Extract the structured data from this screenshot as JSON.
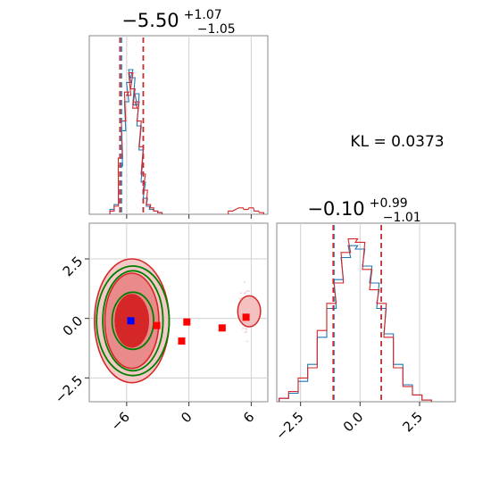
{
  "chart_data": [
    {
      "type": "histogram",
      "panel": "param-1-marginal",
      "title": {
        "median": "−5.50",
        "plus": "+1.07",
        "minus": "−1.05"
      },
      "median": -5.5,
      "quantiles_blue": [
        -6.5,
        -4.4
      ],
      "quantiles_red": [
        -6.65,
        -4.4
      ],
      "xlim": [
        -9.6,
        7.6
      ],
      "grid": true,
      "series": [
        {
          "color": "#1f77b4",
          "x": [
            -7.4,
            -7.0,
            -6.6,
            -6.3,
            -6.0,
            -5.8,
            -5.6,
            -5.4,
            -5.2,
            -5.0,
            -4.8,
            -4.6,
            -4.4,
            -4.2,
            -3.9,
            -3.6,
            -3.2,
            -2.8
          ],
          "y": [
            0.03,
            0.06,
            0.3,
            0.52,
            0.7,
            0.82,
            0.9,
            0.85,
            0.68,
            0.75,
            0.55,
            0.4,
            0.2,
            0.1,
            0.05,
            0.03,
            0.02,
            0.01
          ]
        },
        {
          "color": "#d62728",
          "x": [
            -7.4,
            -7.0,
            -6.6,
            -6.3,
            -6.0,
            -5.8,
            -5.6,
            -5.4,
            -5.2,
            -5.0,
            -4.8,
            -4.6,
            -4.4,
            -4.2,
            -3.9,
            -3.6,
            -3.2,
            -2.8,
            4.0,
            5.0,
            5.5,
            6.0,
            6.5,
            7.0
          ],
          "y": [
            0.02,
            0.05,
            0.35,
            0.58,
            0.76,
            0.74,
            0.88,
            0.78,
            0.66,
            0.7,
            0.58,
            0.42,
            0.25,
            0.15,
            0.06,
            0.04,
            0.02,
            0.01,
            0.02,
            0.04,
            0.03,
            0.04,
            0.02,
            0.01
          ]
        }
      ]
    },
    {
      "type": "histogram",
      "panel": "param-2-marginal",
      "title": {
        "median": "−0.10",
        "plus": "+0.99",
        "minus": "−1.01"
      },
      "median": -0.1,
      "quantiles_blue": [
        -1.1,
        0.89
      ],
      "quantiles_red": [
        -1.13,
        0.89
      ],
      "xlim": [
        -3.5,
        4.0
      ],
      "xticks": [
        "−2.5",
        "0.0",
        "2.5"
      ],
      "grid": true,
      "series": [
        {
          "color": "#1f77b4",
          "x": [
            -3.2,
            -2.8,
            -2.4,
            -2.0,
            -1.6,
            -1.2,
            -0.9,
            -0.6,
            -0.3,
            0.0,
            0.3,
            0.6,
            0.9,
            1.2,
            1.6,
            2.0,
            2.4,
            2.8
          ],
          "y": [
            0.02,
            0.05,
            0.12,
            0.22,
            0.38,
            0.55,
            0.72,
            0.85,
            0.92,
            0.9,
            0.8,
            0.7,
            0.55,
            0.4,
            0.22,
            0.1,
            0.04,
            0.01
          ]
        },
        {
          "color": "#d62728",
          "x": [
            -3.2,
            -2.8,
            -2.4,
            -2.0,
            -1.6,
            -1.2,
            -0.9,
            -0.6,
            -0.3,
            0.0,
            0.3,
            0.6,
            0.9,
            1.2,
            1.6,
            2.0,
            2.4,
            2.8
          ],
          "y": [
            0.02,
            0.06,
            0.14,
            0.2,
            0.42,
            0.58,
            0.7,
            0.88,
            0.96,
            0.94,
            0.78,
            0.66,
            0.58,
            0.38,
            0.2,
            0.09,
            0.04,
            0.01
          ]
        }
      ]
    },
    {
      "type": "scatter",
      "panel": "joint-2d",
      "xlim": [
        -9.6,
        7.6
      ],
      "ylim": [
        -3.5,
        4.0
      ],
      "xticks": [
        "−6",
        "0",
        "6"
      ],
      "yticks": [
        "−2.5",
        "0.0",
        "2.5"
      ],
      "grid": true,
      "blue_marker": {
        "x": -5.6,
        "y": -0.1
      },
      "red_markers": [
        {
          "x": -3.1,
          "y": -0.3
        },
        {
          "x": -0.2,
          "y": -0.15
        },
        {
          "x": -0.7,
          "y": -0.95
        },
        {
          "x": 3.2,
          "y": -0.4
        },
        {
          "x": 5.5,
          "y": 0.05
        }
      ],
      "contours": [
        {
          "color": "#008000",
          "center": [
            -5.4,
            -0.1
          ],
          "radii": [
            [
              2.0,
              1.2
            ],
            [
              2.9,
              2.1
            ],
            [
              3.5,
              2.3
            ]
          ]
        },
        {
          "color": "#d62728",
          "center": [
            -5.5,
            -0.1
          ],
          "radii": [
            [
              1.6,
              1.1
            ],
            [
              2.6,
              2.0
            ],
            [
              3.6,
              2.6
            ]
          ]
        },
        {
          "color": "#d62728",
          "center": [
            5.8,
            0.3
          ],
          "radii": [
            [
              1.1,
              0.65
            ]
          ]
        }
      ]
    }
  ],
  "kl_text": "KL = 0.0373"
}
